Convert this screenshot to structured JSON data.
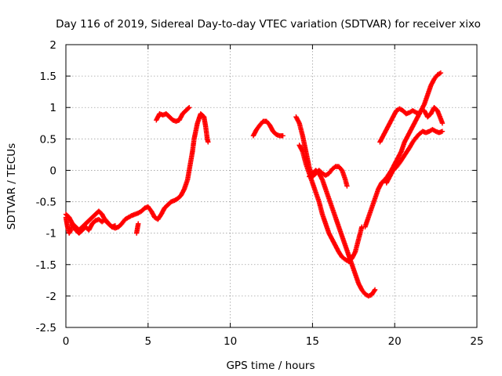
{
  "chart_data": {
    "type": "scatter",
    "title": "Day 116 of 2019, Sidereal Day-to-day VTEC variation (SDTVAR) for receiver xixo",
    "xlabel": "GPS time / hours",
    "ylabel": "SDTVAR / TECUs",
    "xlim": [
      0,
      25
    ],
    "ylim": [
      -2.5,
      2
    ],
    "xticks": [
      "0",
      "5",
      "10",
      "15",
      "20",
      "25"
    ],
    "yticks": [
      "-2.5",
      "-2",
      "-1.5",
      "-1",
      "-0.5",
      "0",
      "0.5",
      "1",
      "1.5",
      "2"
    ],
    "grid": true,
    "marker": "plus",
    "color": "#ff0000",
    "series": [
      {
        "segments": [
          [
            [
              0.0,
              -0.7
            ],
            [
              0.2,
              -0.75
            ],
            [
              0.4,
              -0.85
            ],
            [
              0.6,
              -0.9
            ],
            [
              0.8,
              -0.95
            ],
            [
              1.0,
              -0.9
            ],
            [
              1.2,
              -0.85
            ],
            [
              1.4,
              -0.8
            ],
            [
              1.6,
              -0.75
            ],
            [
              1.8,
              -0.7
            ],
            [
              2.0,
              -0.65
            ],
            [
              2.2,
              -0.7
            ],
            [
              2.4,
              -0.8
            ],
            [
              2.6,
              -0.85
            ],
            [
              2.8,
              -0.9
            ],
            [
              3.0,
              -0.92
            ],
            [
              3.2,
              -0.9
            ],
            [
              3.4,
              -0.85
            ],
            [
              3.6,
              -0.78
            ],
            [
              3.8,
              -0.75
            ],
            [
              4.0,
              -0.72
            ],
            [
              4.2,
              -0.7
            ],
            [
              4.4,
              -0.68
            ],
            [
              4.6,
              -0.65
            ],
            [
              4.8,
              -0.6
            ],
            [
              5.0,
              -0.58
            ],
            [
              5.2,
              -0.65
            ],
            [
              5.4,
              -0.75
            ],
            [
              5.6,
              -0.78
            ],
            [
              5.8,
              -0.7
            ],
            [
              6.0,
              -0.6
            ],
            [
              6.2,
              -0.55
            ],
            [
              6.4,
              -0.5
            ],
            [
              6.6,
              -0.48
            ],
            [
              6.8,
              -0.45
            ],
            [
              7.0,
              -0.4
            ],
            [
              7.2,
              -0.3
            ],
            [
              7.4,
              -0.15
            ],
            [
              7.5,
              0.0
            ],
            [
              7.6,
              0.15
            ],
            [
              7.7,
              0.3
            ],
            [
              7.8,
              0.5
            ],
            [
              8.0,
              0.75
            ],
            [
              8.2,
              0.9
            ],
            [
              8.4,
              0.85
            ],
            [
              8.5,
              0.7
            ],
            [
              8.6,
              0.5
            ],
            [
              8.65,
              0.45
            ]
          ],
          [
            [
              0.0,
              -0.75
            ],
            [
              0.1,
              -0.9
            ],
            [
              0.2,
              -1.0
            ],
            [
              0.3,
              -0.95
            ],
            [
              0.4,
              -0.85
            ],
            [
              0.6,
              -0.95
            ],
            [
              0.8,
              -1.0
            ],
            [
              1.0,
              -0.95
            ],
            [
              1.2,
              -0.9
            ],
            [
              1.4,
              -0.95
            ],
            [
              1.6,
              -0.85
            ],
            [
              1.8,
              -0.8
            ],
            [
              2.0,
              -0.78
            ],
            [
              2.2,
              -0.82
            ],
            [
              2.4,
              -0.78
            ],
            [
              2.6,
              -0.85
            ],
            [
              2.8,
              -0.9
            ],
            [
              3.0,
              -0.88
            ]
          ],
          [
            [
              4.3,
              -1.0
            ],
            [
              4.4,
              -0.85
            ]
          ],
          [
            [
              5.5,
              0.8
            ],
            [
              5.7,
              0.9
            ],
            [
              5.9,
              0.88
            ],
            [
              6.1,
              0.9
            ],
            [
              6.3,
              0.85
            ],
            [
              6.5,
              0.8
            ],
            [
              6.7,
              0.78
            ],
            [
              6.9,
              0.8
            ],
            [
              7.1,
              0.9
            ],
            [
              7.3,
              0.95
            ],
            [
              7.5,
              1.0
            ]
          ],
          [
            [
              11.4,
              0.55
            ],
            [
              11.6,
              0.65
            ],
            [
              11.8,
              0.72
            ],
            [
              12.0,
              0.78
            ],
            [
              12.2,
              0.78
            ],
            [
              12.4,
              0.72
            ],
            [
              12.6,
              0.62
            ],
            [
              12.8,
              0.57
            ],
            [
              13.0,
              0.55
            ],
            [
              13.2,
              0.55
            ]
          ],
          [
            [
              14.0,
              0.85
            ],
            [
              14.2,
              0.75
            ],
            [
              14.4,
              0.55
            ],
            [
              14.6,
              0.3
            ],
            [
              14.8,
              0.05
            ],
            [
              15.0,
              -0.1
            ],
            [
              15.2,
              -0.05
            ],
            [
              15.4,
              0.0
            ],
            [
              15.6,
              -0.05
            ],
            [
              15.8,
              -0.08
            ],
            [
              16.0,
              -0.05
            ],
            [
              16.2,
              0.02
            ],
            [
              16.4,
              0.06
            ],
            [
              16.6,
              0.06
            ],
            [
              16.8,
              0.0
            ],
            [
              17.0,
              -0.15
            ],
            [
              17.1,
              -0.25
            ]
          ],
          [
            [
              14.8,
              -0.1
            ],
            [
              15.0,
              -0.05
            ],
            [
              15.2,
              0.0
            ],
            [
              15.4,
              -0.05
            ],
            [
              15.6,
              -0.15
            ],
            [
              15.8,
              -0.3
            ],
            [
              16.0,
              -0.45
            ],
            [
              16.2,
              -0.6
            ],
            [
              16.4,
              -0.75
            ],
            [
              16.6,
              -0.9
            ],
            [
              16.8,
              -1.05
            ],
            [
              17.0,
              -1.2
            ],
            [
              17.2,
              -1.35
            ],
            [
              17.4,
              -1.5
            ],
            [
              17.6,
              -1.65
            ],
            [
              17.8,
              -1.8
            ],
            [
              18.0,
              -1.9
            ],
            [
              18.2,
              -1.97
            ],
            [
              18.4,
              -2.0
            ],
            [
              18.6,
              -1.98
            ],
            [
              18.8,
              -1.9
            ]
          ],
          [
            [
              14.2,
              0.4
            ],
            [
              14.4,
              0.3
            ],
            [
              14.6,
              0.1
            ],
            [
              14.8,
              -0.05
            ],
            [
              15.0,
              -0.2
            ],
            [
              15.2,
              -0.35
            ],
            [
              15.4,
              -0.5
            ],
            [
              15.6,
              -0.7
            ],
            [
              15.8,
              -0.85
            ],
            [
              16.0,
              -1.0
            ],
            [
              16.2,
              -1.1
            ],
            [
              16.4,
              -1.2
            ],
            [
              16.6,
              -1.3
            ],
            [
              16.8,
              -1.38
            ],
            [
              17.0,
              -1.42
            ],
            [
              17.2,
              -1.45
            ],
            [
              17.4,
              -1.4
            ],
            [
              17.6,
              -1.3
            ],
            [
              17.8,
              -1.1
            ],
            [
              18.0,
              -0.9
            ]
          ],
          [
            [
              18.2,
              -0.9
            ],
            [
              18.4,
              -0.75
            ],
            [
              18.6,
              -0.6
            ],
            [
              18.8,
              -0.45
            ],
            [
              19.0,
              -0.3
            ],
            [
              19.2,
              -0.2
            ],
            [
              19.4,
              -0.15
            ],
            [
              19.6,
              -0.08
            ],
            [
              19.8,
              0.0
            ],
            [
              20.0,
              0.1
            ],
            [
              20.2,
              0.2
            ],
            [
              20.4,
              0.3
            ],
            [
              20.6,
              0.45
            ],
            [
              20.8,
              0.55
            ],
            [
              21.0,
              0.65
            ],
            [
              21.2,
              0.75
            ],
            [
              21.4,
              0.85
            ],
            [
              21.6,
              0.95
            ],
            [
              21.8,
              1.05
            ],
            [
              22.0,
              1.2
            ],
            [
              22.2,
              1.35
            ],
            [
              22.4,
              1.45
            ],
            [
              22.6,
              1.52
            ],
            [
              22.8,
              1.55
            ]
          ],
          [
            [
              19.1,
              0.45
            ],
            [
              19.3,
              0.55
            ],
            [
              19.5,
              0.65
            ],
            [
              19.7,
              0.75
            ],
            [
              19.9,
              0.85
            ],
            [
              20.1,
              0.95
            ],
            [
              20.3,
              0.98
            ],
            [
              20.5,
              0.95
            ],
            [
              20.7,
              0.9
            ],
            [
              20.9,
              0.92
            ],
            [
              21.1,
              0.95
            ],
            [
              21.3,
              0.92
            ],
            [
              21.5,
              0.9
            ]
          ],
          [
            [
              19.5,
              -0.2
            ],
            [
              19.7,
              -0.1
            ],
            [
              19.9,
              0.0
            ],
            [
              20.1,
              0.05
            ],
            [
              20.3,
              0.12
            ],
            [
              20.5,
              0.2
            ],
            [
              20.7,
              0.28
            ],
            [
              20.9,
              0.36
            ],
            [
              21.1,
              0.45
            ],
            [
              21.3,
              0.52
            ],
            [
              21.5,
              0.58
            ],
            [
              21.7,
              0.62
            ],
            [
              21.9,
              0.6
            ],
            [
              22.1,
              0.62
            ],
            [
              22.3,
              0.65
            ],
            [
              22.5,
              0.62
            ],
            [
              22.7,
              0.6
            ],
            [
              22.9,
              0.62
            ]
          ],
          [
            [
              21.8,
              0.95
            ],
            [
              22.0,
              0.85
            ],
            [
              22.2,
              0.9
            ],
            [
              22.4,
              1.0
            ],
            [
              22.6,
              0.95
            ],
            [
              22.8,
              0.82
            ],
            [
              22.9,
              0.75
            ]
          ]
        ]
      }
    ]
  }
}
